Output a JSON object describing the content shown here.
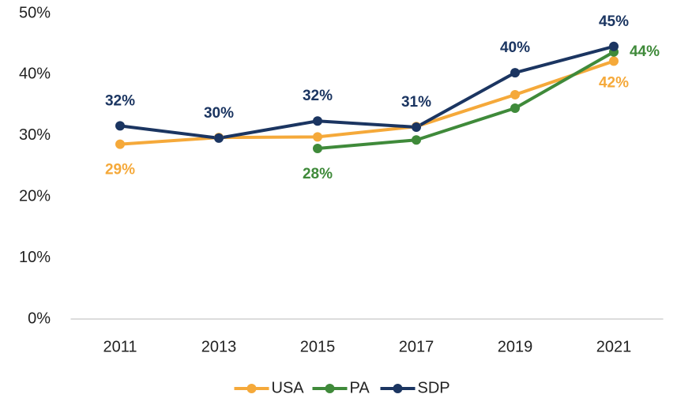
{
  "chart_data": {
    "type": "line",
    "categories": [
      "2011",
      "2013",
      "2015",
      "2017",
      "2019",
      "2021"
    ],
    "series": [
      {
        "name": "USA",
        "color": "#f5a93a",
        "values": [
          28.6,
          29.7,
          29.8,
          31.5,
          36.7,
          42.2
        ],
        "value_labels": [
          "29%",
          null,
          null,
          null,
          null,
          "42%"
        ]
      },
      {
        "name": "PA",
        "color": "#3f8a3a",
        "values": [
          null,
          null,
          27.9,
          29.3,
          34.5,
          43.7
        ],
        "value_labels": [
          null,
          null,
          "28%",
          null,
          null,
          "44%"
        ]
      },
      {
        "name": "SDP",
        "color": "#1b3561",
        "values": [
          31.6,
          29.6,
          32.4,
          31.4,
          40.3,
          44.6
        ],
        "value_labels": [
          "32%",
          "30%",
          "32%",
          "31%",
          "40%",
          "45%"
        ]
      }
    ],
    "ylim": [
      0,
      50
    ],
    "yticks": [
      {
        "value": 0,
        "label": "0%"
      },
      {
        "value": 10,
        "label": "10%"
      },
      {
        "value": 20,
        "label": "20%"
      },
      {
        "value": 30,
        "label": "30%"
      },
      {
        "value": 40,
        "label": "40%"
      },
      {
        "value": 50,
        "label": "50%"
      }
    ],
    "grid": false,
    "legend": "bottom"
  }
}
